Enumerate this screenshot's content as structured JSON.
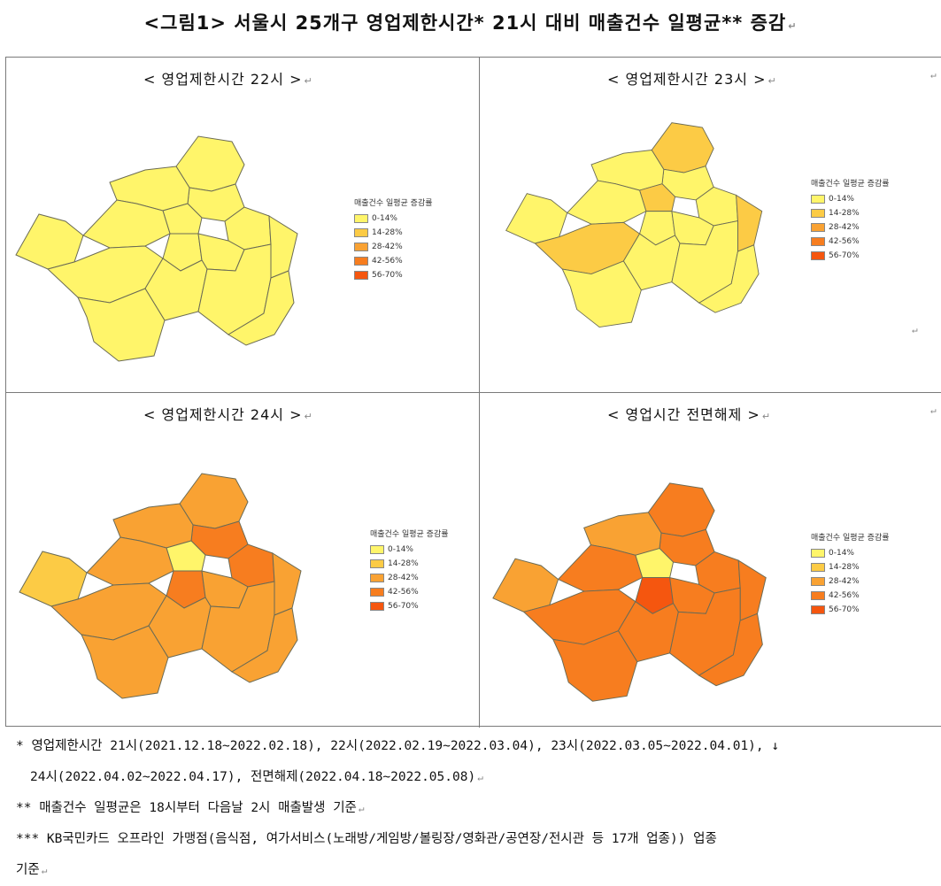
{
  "title": "<그림1> 서울시 25개구 영업제한시간* 21시 대비 매출건수 일평균** 증감",
  "title_mark": "↵",
  "legend": {
    "title": "매출건수 일평균 증감률",
    "bins": [
      "0-14%",
      "14-28%",
      "28-42%",
      "42-56%",
      "56-70%"
    ],
    "colors": [
      "#fff56a",
      "#fccb45",
      "#f9a233",
      "#f77d1f",
      "#f5560f"
    ]
  },
  "panels": [
    {
      "title": "< 영업제한시간 22시 >",
      "mark": "↵",
      "districts": {
        "default": 0
      }
    },
    {
      "title": "< 영업제한시간 23시 >",
      "mark": "↵",
      "districts": {
        "default": 0,
        "north": 1,
        "east-mid": 1,
        "center": 1,
        "sw": 1
      }
    },
    {
      "title": "< 영업제한시간 24시 >",
      "mark": "↵",
      "districts": {
        "default": 2,
        "center": 0,
        "west": 1,
        "yongsan": 3,
        "seongbuk": 3,
        "dongdaemun": 3
      }
    },
    {
      "title": "< 영업시간 전면해제 >",
      "mark": "↵",
      "districts": {
        "default": 3,
        "center": 0,
        "west": 2,
        "yongsan": 4,
        "northwest": 2
      }
    }
  ],
  "notes": [
    "* 영업제한시간 21시(2021.12.18~2022.02.18), 22시(2022.02.19~2022.03.04), 23시(2022.03.05~2022.04.01), ↓",
    "  24시(2022.04.02~2022.04.17), 전면해제(2022.04.18~2022.05.08)",
    "** 매출건수 일평균은 18시부터 다음날 2시 매출발생 기준",
    "***  KB국민카드 오프라인 가맹점(음식점, 여가서비스(노래방/게임방/볼링장/영화관/공연장/전시관 등 17개 업종)) 업종",
    "기준"
  ],
  "note_marks": [
    "",
    "↵",
    "↵",
    "",
    "↵"
  ]
}
